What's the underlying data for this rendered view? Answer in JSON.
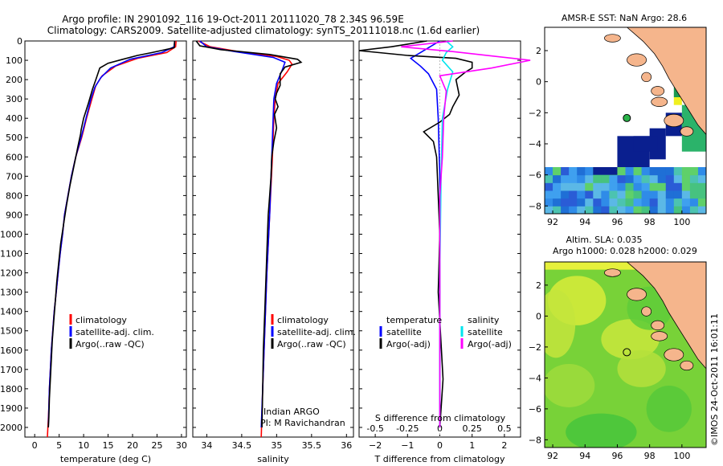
{
  "header": {
    "title_line1": "Argo profile: IN 2901092_116 19-Oct-2011 20111020_78 2.34S 96.59E",
    "title_line2": "Climatology: CARS2009. Satellite-adjusted climatology: synTS_20111018.nc (1.6d earlier)"
  },
  "colors": {
    "climatology": "#ff0000",
    "satellite": "#0000ff",
    "argo": "#000000",
    "salinity_satellite": "#00e5ee",
    "salinity_argo": "#ff00ff",
    "land": "#f5b58c"
  },
  "chart_data": [
    {
      "id": "temperature",
      "type": "line",
      "xlabel": "temperature (deg C)",
      "xlim": [
        -2,
        31
      ],
      "xticks": [
        0,
        5,
        10,
        15,
        20,
        25,
        30
      ],
      "ylim": [
        2050,
        0
      ],
      "yticks": [
        0,
        100,
        200,
        300,
        400,
        500,
        600,
        700,
        800,
        900,
        1000,
        1100,
        1200,
        1300,
        1400,
        1500,
        1600,
        1700,
        1800,
        1900,
        2000
      ],
      "legend": [
        "climatology",
        "satellite-adj. clim.",
        "Argo(..raw -QC)"
      ],
      "series": [
        {
          "name": "climatology",
          "color": "#ff0000",
          "points": [
            [
              28.9,
              0
            ],
            [
              28.8,
              30
            ],
            [
              27,
              60
            ],
            [
              21,
              90
            ],
            [
              16.5,
              130
            ],
            [
              13.8,
              180
            ],
            [
              12.5,
              230
            ],
            [
              11.7,
              300
            ],
            [
              10.6,
              400
            ],
            [
              9.6,
              500
            ],
            [
              8.4,
              600
            ],
            [
              7.5,
              700
            ],
            [
              6.8,
              800
            ],
            [
              6.1,
              900
            ],
            [
              5.7,
              1000
            ],
            [
              5.2,
              1100
            ],
            [
              4.8,
              1200
            ],
            [
              4.4,
              1300
            ],
            [
              4.0,
              1400
            ],
            [
              3.7,
              1500
            ],
            [
              3.4,
              1600
            ],
            [
              3.2,
              1700
            ],
            [
              3.0,
              1800
            ],
            [
              2.9,
              1900
            ],
            [
              2.7,
              2000
            ],
            [
              2.6,
              2050
            ]
          ]
        },
        {
          "name": "satellite-adj. clim.",
          "color": "#0000ff",
          "points": [
            [
              28.6,
              0
            ],
            [
              28.5,
              30
            ],
            [
              26,
              60
            ],
            [
              19.5,
              95
            ],
            [
              15.5,
              140
            ],
            [
              13.5,
              190
            ],
            [
              12.3,
              240
            ],
            [
              11.5,
              300
            ],
            [
              10.5,
              400
            ],
            [
              9.5,
              500
            ],
            [
              8.4,
              600
            ],
            [
              7.5,
              700
            ],
            [
              6.8,
              800
            ],
            [
              6.1,
              900
            ],
            [
              5.7,
              1000
            ],
            [
              5.2,
              1100
            ],
            [
              4.8,
              1200
            ],
            [
              4.4,
              1300
            ],
            [
              4.0,
              1400
            ],
            [
              3.7,
              1500
            ],
            [
              3.4,
              1600
            ],
            [
              3.2,
              1700
            ],
            [
              3.0,
              1800
            ],
            [
              2.9,
              1900
            ],
            [
              2.8,
              2000
            ]
          ]
        },
        {
          "name": "Argo(..raw -QC)",
          "color": "#000000",
          "points": [
            [
              28.6,
              0
            ],
            [
              28.5,
              35
            ],
            [
              24,
              60
            ],
            [
              21,
              75
            ],
            [
              18,
              95
            ],
            [
              15,
              115
            ],
            [
              13.3,
              140
            ],
            [
              12.5,
              200
            ],
            [
              11.8,
              250
            ],
            [
              11,
              320
            ],
            [
              10,
              400
            ],
            [
              9.5,
              460
            ],
            [
              9.4,
              480
            ],
            [
              8.8,
              550
            ],
            [
              8.0,
              650
            ],
            [
              7.2,
              750
            ],
            [
              6.5,
              850
            ],
            [
              5.9,
              950
            ],
            [
              5.3,
              1050
            ],
            [
              4.9,
              1150
            ],
            [
              4.5,
              1250
            ],
            [
              4.2,
              1350
            ],
            [
              3.9,
              1450
            ],
            [
              3.6,
              1550
            ],
            [
              3.4,
              1650
            ],
            [
              3.2,
              1750
            ],
            [
              3.0,
              1850
            ],
            [
              2.9,
              1950
            ],
            [
              2.8,
              2000
            ]
          ]
        }
      ]
    },
    {
      "id": "salinity",
      "type": "line",
      "xlabel": "salinity",
      "xlim": [
        33.8,
        36.1
      ],
      "xticks": [
        34,
        34.5,
        35,
        35.5,
        36
      ],
      "xticklabels": [
        "34",
        "34.5",
        "35",
        "35.5",
        "36"
      ],
      "ylim": [
        2050,
        0
      ],
      "legend": [
        "climatology",
        "satellite-adj. clim.",
        "Argo(..raw -QC)"
      ],
      "annotation_line1": "Indian ARGO",
      "annotation_line2": "PI: M Ravichandran",
      "series": [
        {
          "name": "climatology",
          "color": "#ff0000",
          "points": [
            [
              33.88,
              0
            ],
            [
              34.05,
              30
            ],
            [
              34.45,
              55
            ],
            [
              35.0,
              80
            ],
            [
              35.18,
              100
            ],
            [
              35.22,
              120
            ],
            [
              35.15,
              160
            ],
            [
              35.02,
              220
            ],
            [
              34.98,
              300
            ],
            [
              34.96,
              400
            ],
            [
              34.94,
              600
            ],
            [
              34.9,
              900
            ],
            [
              34.86,
              1200
            ],
            [
              34.83,
              1500
            ],
            [
              34.8,
              1800
            ],
            [
              34.78,
              2050
            ]
          ]
        },
        {
          "name": "satellite-adj. clim.",
          "color": "#0000ff",
          "points": [
            [
              33.9,
              0
            ],
            [
              34.0,
              30
            ],
            [
              34.4,
              55
            ],
            [
              34.95,
              85
            ],
            [
              35.12,
              110
            ],
            [
              35.08,
              150
            ],
            [
              35.0,
              220
            ],
            [
              34.96,
              300
            ],
            [
              34.95,
              400
            ],
            [
              34.93,
              600
            ],
            [
              34.9,
              900
            ],
            [
              34.86,
              1200
            ],
            [
              34.83,
              1500
            ],
            [
              34.8,
              1800
            ],
            [
              34.78,
              2000
            ]
          ]
        },
        {
          "name": "Argo(..raw -QC)",
          "color": "#000000",
          "points": [
            [
              33.85,
              0
            ],
            [
              33.9,
              25
            ],
            [
              34.2,
              45
            ],
            [
              34.9,
              70
            ],
            [
              35.3,
              95
            ],
            [
              35.35,
              110
            ],
            [
              35.12,
              135
            ],
            [
              35.05,
              170
            ],
            [
              35.05,
              230
            ],
            [
              35.0,
              270
            ],
            [
              34.98,
              300
            ],
            [
              35.02,
              340
            ],
            [
              34.97,
              380
            ],
            [
              35.0,
              450
            ],
            [
              34.96,
              520
            ],
            [
              34.93,
              600
            ],
            [
              34.92,
              700
            ],
            [
              34.9,
              800
            ],
            [
              34.88,
              900
            ],
            [
              34.87,
              1000
            ],
            [
              34.85,
              1200
            ],
            [
              34.83,
              1400
            ],
            [
              34.81,
              1600
            ],
            [
              34.8,
              1800
            ],
            [
              34.79,
              2000
            ]
          ]
        }
      ]
    },
    {
      "id": "differences",
      "type": "line",
      "xlabel": "T difference from climatology",
      "xlabel2": "S difference from climatology",
      "xlim": [
        -2.5,
        2.5
      ],
      "xticks": [
        -2,
        -1,
        0,
        1,
        2
      ],
      "xticks2": [
        -0.5,
        -0.25,
        0,
        0.25,
        0.5
      ],
      "xticklabels2": [
        "-0.5",
        "-0.25",
        "0",
        "0.25",
        "0.5"
      ],
      "ylim": [
        2050,
        0
      ],
      "legend_temperature_title": "temperature",
      "legend_salinity_title": "salinity",
      "legend": [
        "satellite",
        "Argo(-adj)",
        "satellite",
        "Argo(-adj)"
      ],
      "series": [
        {
          "name": "temperature satellite",
          "color": "#0000ff",
          "points": [
            [
              0,
              0
            ],
            [
              -0.3,
              30
            ],
            [
              -0.6,
              60
            ],
            [
              -0.9,
              90
            ],
            [
              -0.6,
              130
            ],
            [
              -0.35,
              170
            ],
            [
              -0.1,
              250
            ],
            [
              -0.05,
              400
            ],
            [
              0,
              700
            ],
            [
              0,
              1200
            ],
            [
              0,
              2000
            ]
          ]
        },
        {
          "name": "temperature Argo(-adj)",
          "color": "#000000",
          "points": [
            [
              -0.4,
              0
            ],
            [
              -1.5,
              30
            ],
            [
              -2.5,
              50
            ],
            [
              -1.0,
              75
            ],
            [
              0.5,
              90
            ],
            [
              1.0,
              110
            ],
            [
              1.0,
              140
            ],
            [
              0.8,
              160
            ],
            [
              0.5,
              200
            ],
            [
              0.6,
              280
            ],
            [
              0.4,
              340
            ],
            [
              0.3,
              380
            ],
            [
              0,
              420
            ],
            [
              -0.5,
              470
            ],
            [
              -0.2,
              520
            ],
            [
              -0.1,
              600
            ],
            [
              -0.05,
              800
            ],
            [
              0,
              1000
            ],
            [
              -0.05,
              1300
            ],
            [
              0.05,
              1600
            ],
            [
              0.1,
              1750
            ],
            [
              0,
              2000
            ]
          ]
        },
        {
          "name": "salinity satellite",
          "color": "#00e5ee",
          "points": [
            [
              0.05,
              0
            ],
            [
              0.1,
              30
            ],
            [
              0.05,
              60
            ],
            [
              0.02,
              100
            ],
            [
              0.1,
              160
            ],
            [
              0.06,
              250
            ],
            [
              0.02,
              400
            ],
            [
              0.01,
              700
            ],
            [
              0,
              1200
            ],
            [
              0,
              2000
            ]
          ]
        },
        {
          "name": "salinity Argo(-adj)",
          "color": "#ff00ff",
          "points": [
            [
              0.1,
              0
            ],
            [
              -0.3,
              30
            ],
            [
              0.1,
              55
            ],
            [
              0.7,
              100
            ],
            [
              0.4,
              140
            ],
            [
              0,
              180
            ],
            [
              0.05,
              260
            ],
            [
              0.03,
              400
            ],
            [
              0.02,
              600
            ],
            [
              0,
              800
            ],
            [
              0,
              1100
            ],
            [
              0,
              1500
            ],
            [
              0,
              2000
            ]
          ]
        }
      ]
    }
  ],
  "maps": {
    "sst": {
      "title": "AMSR-E SST: NaN Argo: 28.6",
      "xticks": [
        92,
        94,
        96,
        98,
        100
      ],
      "yticks": [
        2,
        0,
        -2,
        -4,
        -6,
        -8
      ],
      "xlim": [
        91.5,
        101.5
      ],
      "ylim": [
        -8.5,
        3.5
      ],
      "argo_position": [
        96.59,
        -2.34
      ]
    },
    "sla": {
      "title_line1": "Altim. SLA: 0.035",
      "title_line2": "Argo h1000: 0.028 h2000: 0.029",
      "xticks": [
        92,
        94,
        96,
        98,
        100
      ],
      "yticks": [
        2,
        0,
        -2,
        -4,
        -6,
        -8
      ],
      "xlim": [
        91.5,
        101.5
      ],
      "ylim": [
        -8.5,
        3.5
      ],
      "argo_position": [
        96.59,
        -2.34
      ]
    }
  },
  "footer": {
    "side_text": "©IMOS 24-Oct-2011 16:01:11"
  }
}
